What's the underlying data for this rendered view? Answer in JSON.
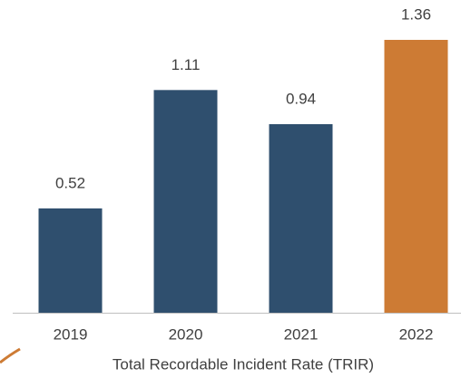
{
  "chart_data": {
    "type": "bar",
    "x_label": "Total Recordable Incident Rate (TRIR)",
    "categories": [
      "2019",
      "2020",
      "2021",
      "2022"
    ],
    "values": [
      0.52,
      1.11,
      0.94,
      1.36
    ],
    "colors": [
      "#2f4f6e",
      "#2f4f6e",
      "#2f4f6e",
      "#cd7b34"
    ],
    "ylim": [
      0,
      1.5
    ]
  }
}
